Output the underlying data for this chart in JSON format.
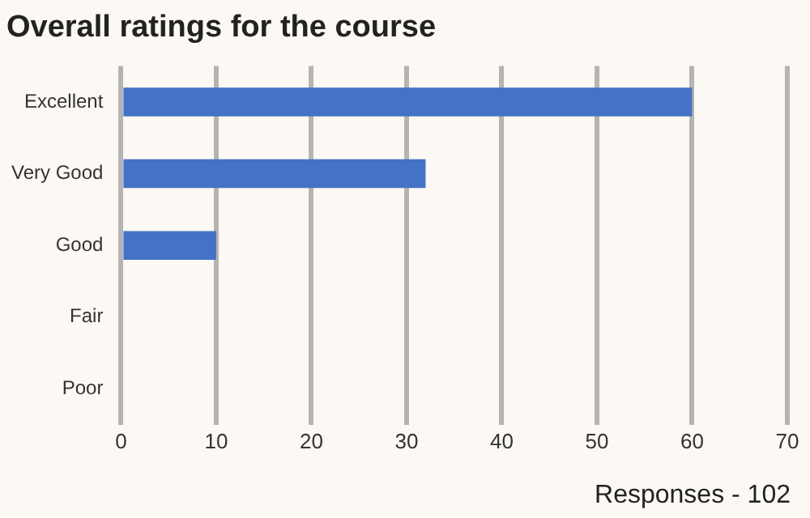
{
  "chart_data": {
    "type": "bar",
    "orientation": "horizontal",
    "title": "Overall ratings for the course",
    "categories": [
      "Excellent",
      "Very Good",
      "Good",
      "Fair",
      "Poor"
    ],
    "series": [
      {
        "color": "#4472c4",
        "values": [
          60,
          32,
          10,
          0,
          0
        ]
      }
    ],
    "xlim": [
      0,
      70
    ],
    "xticks": [
      0,
      10,
      20,
      30,
      40,
      50,
      60,
      70
    ],
    "grid": "x",
    "legend": false,
    "annotations": [
      "Responses - 102"
    ]
  }
}
